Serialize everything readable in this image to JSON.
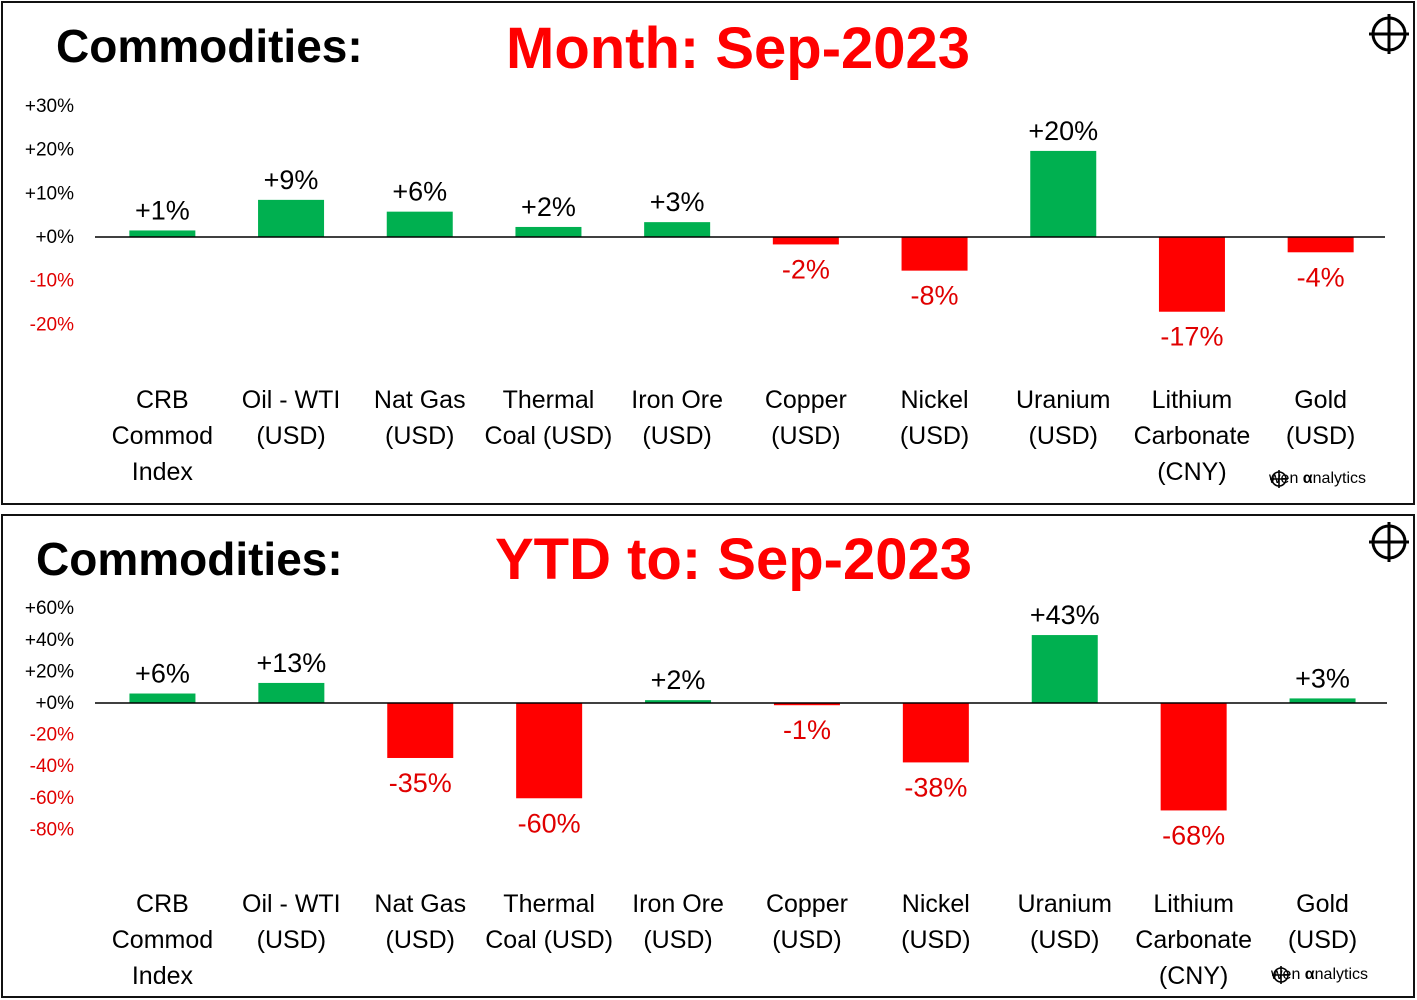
{
  "charts": [
    {
      "left_title": "Commodities:",
      "right_title": "Month:  Sep-2023",
      "brand": {
        "pre": "wen ",
        "alpha": "α",
        "post": "nalytics"
      },
      "chart_data": {
        "type": "bar",
        "categories": [
          [
            "CRB",
            "Commod",
            "Index"
          ],
          [
            "Oil - WTI",
            "(USD)"
          ],
          [
            "Nat Gas",
            "(USD)"
          ],
          [
            "Thermal",
            "Coal (USD)"
          ],
          [
            "Iron Ore",
            "(USD)"
          ],
          [
            "Copper",
            "(USD)"
          ],
          [
            "Nickel",
            "(USD)"
          ],
          [
            "Uranium",
            "(USD)"
          ],
          [
            "Lithium",
            "Carbonate",
            "(CNY)"
          ],
          [
            "Gold",
            "(USD)"
          ]
        ],
        "values": [
          1.5,
          8.5,
          5.8,
          2.3,
          3.4,
          -1.7,
          -7.7,
          19.7,
          -17.1,
          -3.5
        ],
        "data_labels": [
          "+1%",
          "+9%",
          "+6%",
          "+2%",
          "+3%",
          "-2%",
          "-8%",
          "+20%",
          "-17%",
          "-4%"
        ],
        "yticks": [
          "+30%",
          "+20%",
          "+10%",
          "+0%",
          "-10%",
          "-20%"
        ],
        "ytick_values": [
          30,
          20,
          10,
          0,
          -10,
          -20
        ],
        "ylim": [
          -30,
          30
        ],
        "grid": false,
        "legend": "none",
        "colors": {
          "positive": "#00b050",
          "negative": "#ff0000",
          "pos_text": "#000000",
          "neg_text": "#e00000"
        }
      }
    },
    {
      "left_title": "Commodities:",
      "right_title": "YTD to:  Sep-2023",
      "brand": {
        "pre": "wen ",
        "alpha": "α",
        "post": "nalytics"
      },
      "chart_data": {
        "type": "bar",
        "categories": [
          [
            "CRB",
            "Commod",
            "Index"
          ],
          [
            "Oil - WTI",
            "(USD)"
          ],
          [
            "Nat Gas",
            "(USD)"
          ],
          [
            "Thermal",
            "Coal (USD)"
          ],
          [
            "Iron Ore",
            "(USD)"
          ],
          [
            "Copper",
            "(USD)"
          ],
          [
            "Nickel",
            "(USD)"
          ],
          [
            "Uranium",
            "(USD)"
          ],
          [
            "Lithium",
            "Carbonate",
            "(CNY)"
          ],
          [
            "Gold",
            "(USD)"
          ]
        ],
        "values": [
          6.0,
          12.7,
          -34.8,
          -60.3,
          1.8,
          -1.4,
          -37.6,
          43.0,
          -68.0,
          2.9
        ],
        "data_labels": [
          "+6%",
          "+13%",
          "-35%",
          "-60%",
          "+2%",
          "-1%",
          "-38%",
          "+43%",
          "-68%",
          "+3%"
        ],
        "yticks": [
          "+60%",
          "+40%",
          "+20%",
          "+0%",
          "-20%",
          "-40%",
          "-60%",
          "-80%"
        ],
        "ytick_values": [
          60,
          40,
          20,
          0,
          -20,
          -40,
          -60,
          -80
        ],
        "ylim": [
          -100,
          60
        ],
        "grid": false,
        "legend": "none",
        "colors": {
          "positive": "#00b050",
          "negative": "#ff0000",
          "pos_text": "#000000",
          "neg_text": "#e00000"
        }
      }
    }
  ]
}
